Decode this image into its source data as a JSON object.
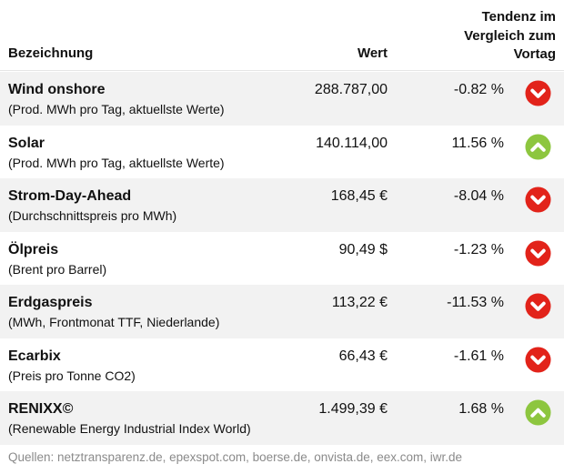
{
  "header": {
    "name_label": "Bezeichnung",
    "value_label": "Wert",
    "trend_line1": "Tendenz im",
    "trend_line2": "Vergleich zum",
    "trend_line3": "Vortag"
  },
  "colors": {
    "down": "#e2231a",
    "up": "#8dc63f",
    "row_shade": "#f2f2f2"
  },
  "rows": [
    {
      "name": "Wind onshore",
      "desc": "(Prod. MWh pro Tag, aktuellste Werte)",
      "value": "288.787,00",
      "pct": "-0.82 %",
      "trend": "down",
      "icon": "arrow-down-icon"
    },
    {
      "name": "Solar",
      "desc": "(Prod. MWh pro Tag, aktuellste Werte)",
      "value": "140.114,00",
      "pct": "11.56 %",
      "trend": "up",
      "icon": "arrow-up-icon"
    },
    {
      "name": "Strom-Day-Ahead",
      "desc": "(Durchschnittspreis pro MWh)",
      "value": "168,45 €",
      "pct": "-8.04 %",
      "trend": "down",
      "icon": "arrow-down-icon"
    },
    {
      "name": "Ölpreis",
      "desc": "(Brent pro Barrel)",
      "value": "90,49 $",
      "pct": "-1.23 %",
      "trend": "down",
      "icon": "arrow-down-icon"
    },
    {
      "name": "Erdgaspreis",
      "desc": "(MWh, Frontmonat TTF, Niederlande)",
      "value": "113,22 €",
      "pct": "-11.53 %",
      "trend": "down",
      "icon": "arrow-down-icon"
    },
    {
      "name": "Ecarbix",
      "desc": "(Preis pro Tonne CO2)",
      "value": "66,43 €",
      "pct": "-1.61 %",
      "trend": "down",
      "icon": "arrow-down-icon"
    },
    {
      "name": "RENIXX©",
      "desc": "(Renewable Energy Industrial Index World)",
      "value": "1.499,39 €",
      "pct": "1.68 %",
      "trend": "up",
      "icon": "arrow-up-icon"
    }
  ],
  "footer": {
    "sources": "Quellen: netztransparenz.de, epexspot.com, boerse.de, onvista.de, eex.com, iwr.de"
  }
}
